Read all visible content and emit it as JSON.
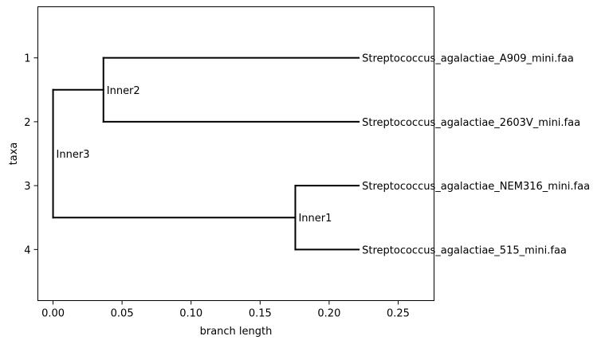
{
  "chart_data": {
    "type": "phylogenetic-tree",
    "xlabel": "branch length",
    "ylabel": "taxa",
    "xlim": [
      -0.011,
      0.276
    ],
    "ylim": [
      4.8,
      0.2
    ],
    "xticks": [
      0.0,
      0.05,
      0.1,
      0.15,
      0.2,
      0.25
    ],
    "xtick_labels": [
      "0.00",
      "0.05",
      "0.10",
      "0.15",
      "0.20",
      "0.25"
    ],
    "yticks": [
      1,
      2,
      3,
      4
    ],
    "ytick_labels": [
      "1",
      "2",
      "3",
      "4"
    ],
    "nodes": [
      {
        "id": "inner3",
        "label": "Inner3",
        "x": 0.0,
        "y": 2.5,
        "parent": null
      },
      {
        "id": "inner2",
        "label": "Inner2",
        "x": 0.0365,
        "y": 1.5,
        "parent": "inner3"
      },
      {
        "id": "inner1",
        "label": "Inner1",
        "x": 0.1755,
        "y": 3.5,
        "parent": "inner3"
      },
      {
        "id": "leaf1",
        "label": "Streptococcus_agalactiae_A909_mini.faa",
        "x": 0.2215,
        "y": 1,
        "parent": "inner2"
      },
      {
        "id": "leaf2",
        "label": "Streptococcus_agalactiae_2603V_mini.faa",
        "x": 0.2215,
        "y": 2,
        "parent": "inner2"
      },
      {
        "id": "leaf3",
        "label": "Streptococcus_agalactiae_NEM316_mini.faa",
        "x": 0.2215,
        "y": 3,
        "parent": "inner1"
      },
      {
        "id": "leaf4",
        "label": "Streptococcus_agalactiae_515_mini.faa",
        "x": 0.2215,
        "y": 4,
        "parent": "inner1"
      }
    ]
  }
}
